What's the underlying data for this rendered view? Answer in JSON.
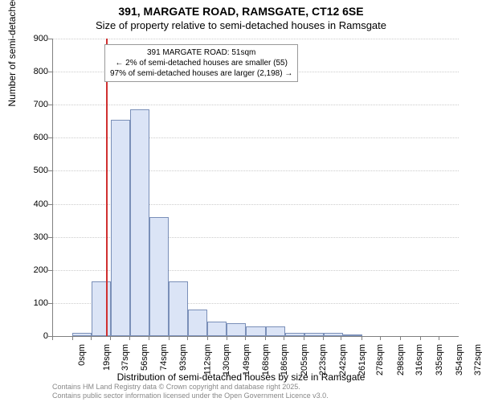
{
  "title_main": "391, MARGATE ROAD, RAMSGATE, CT12 6SE",
  "title_sub": "Size of property relative to semi-detached houses in Ramsgate",
  "y_label": "Number of semi-detached properties",
  "x_label": "Distribution of semi-detached houses by size in Ramsgate",
  "chart": {
    "type": "histogram",
    "ylim": [
      0,
      900
    ],
    "ytick_step": 100,
    "bar_fill": "#dbe4f6",
    "bar_border": "#7a8fb8",
    "background_color": "#ffffff",
    "grid_color": "#cccccc",
    "marker_color": "#d03030",
    "marker_value_sqm": 51,
    "bin_width_sqm": 18.7,
    "bins": [
      {
        "x_sqm": 0,
        "count": 2
      },
      {
        "x_sqm": 19,
        "count": 10
      },
      {
        "x_sqm": 37,
        "count": 165
      },
      {
        "x_sqm": 56,
        "count": 655
      },
      {
        "x_sqm": 74,
        "count": 685
      },
      {
        "x_sqm": 93,
        "count": 360
      },
      {
        "x_sqm": 112,
        "count": 165
      },
      {
        "x_sqm": 130,
        "count": 80
      },
      {
        "x_sqm": 149,
        "count": 45
      },
      {
        "x_sqm": 168,
        "count": 40
      },
      {
        "x_sqm": 186,
        "count": 30
      },
      {
        "x_sqm": 205,
        "count": 30
      },
      {
        "x_sqm": 223,
        "count": 10
      },
      {
        "x_sqm": 242,
        "count": 10
      },
      {
        "x_sqm": 261,
        "count": 10
      },
      {
        "x_sqm": 278,
        "count": 3
      },
      {
        "x_sqm": 298,
        "count": 2
      },
      {
        "x_sqm": 316,
        "count": 0
      },
      {
        "x_sqm": 335,
        "count": 0
      },
      {
        "x_sqm": 354,
        "count": 0
      },
      {
        "x_sqm": 372,
        "count": 0
      }
    ],
    "x_ticks": [
      0,
      19,
      37,
      56,
      74,
      93,
      112,
      130,
      149,
      168,
      186,
      205,
      223,
      242,
      261,
      278,
      298,
      316,
      335,
      354,
      372
    ],
    "x_tick_suffix": "sqm"
  },
  "info_box": {
    "line1": "391 MARGATE ROAD: 51sqm",
    "line2": "← 2% of semi-detached houses are smaller (55)",
    "line3": "97% of semi-detached houses are larger (2,198) →"
  },
  "footer": {
    "line1": "Contains HM Land Registry data © Crown copyright and database right 2025.",
    "line2": "Contains public sector information licensed under the Open Government Licence v3.0."
  },
  "fonts": {
    "title_size_pt": 14,
    "subtitle_size_pt": 13,
    "axis_label_size_pt": 12,
    "tick_size_pt": 11,
    "info_box_size_pt": 10,
    "footer_size_pt": 9
  }
}
